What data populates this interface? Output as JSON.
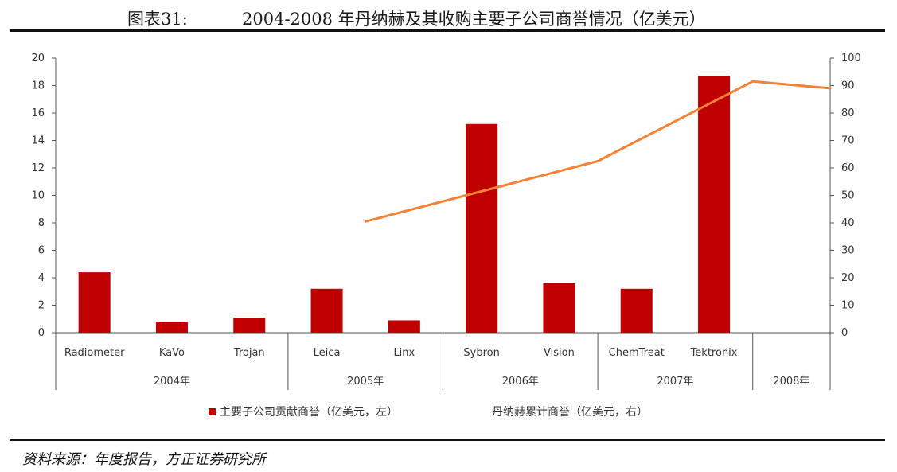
{
  "header": {
    "label": "图表31:",
    "title": "2004-2008 年丹纳赫及其收购主要子公司商誉情况（亿美元）"
  },
  "source": "资料来源：年度报告，方正证券研究所",
  "chart_data": {
    "type": "bar",
    "categories": [
      "Radiometer",
      "KaVo",
      "Trojan",
      "Leica",
      "Linx",
      "Sybron",
      "Vision",
      "ChemTreat",
      "Tektronix"
    ],
    "groups": [
      {
        "label": "2004年",
        "count": 3
      },
      {
        "label": "2005年",
        "count": 2
      },
      {
        "label": "2006年",
        "count": 2
      },
      {
        "label": "2007年",
        "count": 2
      },
      {
        "label": "2008年",
        "count": 1
      }
    ],
    "series": [
      {
        "name": "主要子公司贡献商誉（亿美元，左）",
        "type": "bar",
        "axis": "left",
        "color": "#c00000",
        "values": [
          4.4,
          0.8,
          1.1,
          3.2,
          0.9,
          15.2,
          3.6,
          3.2,
          18.7
        ]
      },
      {
        "name": "丹纳赫累计商誉（亿美元，右）",
        "type": "line",
        "axis": "right",
        "color": "#f58134",
        "points": [
          {
            "slot": 4,
            "value": 40.5
          },
          {
            "slot": 7,
            "value": 62.5
          },
          {
            "slot": 9,
            "value": 91.5
          },
          {
            "slot": 10,
            "value": 89
          }
        ]
      }
    ],
    "y_left": {
      "min": 0,
      "max": 20,
      "step": 2,
      "ticks": [
        "0",
        "2",
        "4",
        "6",
        "8",
        "10",
        "12",
        "14",
        "16",
        "18",
        "20"
      ]
    },
    "y_right": {
      "min": 0,
      "max": 100,
      "step": 10,
      "ticks": [
        "0",
        "10",
        "20",
        "30",
        "40",
        "50",
        "60",
        "70",
        "80",
        "90",
        "100"
      ]
    },
    "legend_position": "bottom",
    "grid": false
  }
}
